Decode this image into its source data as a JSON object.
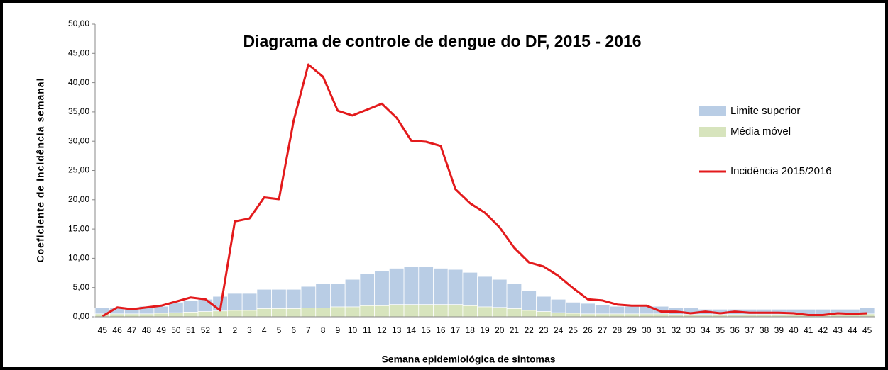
{
  "chart_data": {
    "type": "bar",
    "title": "Diagrama de controle de dengue do DF, 2015 - 2016",
    "x_label": "Semana epidemiológica  de sintomas",
    "y_label": "Coeficiente de incidência semanal",
    "categories": [
      "45",
      "46",
      "47",
      "48",
      "49",
      "50",
      "51",
      "52",
      "1",
      "2",
      "3",
      "4",
      "5",
      "6",
      "7",
      "8",
      "9",
      "10",
      "11",
      "12",
      "13",
      "14",
      "15",
      "16",
      "17",
      "18",
      "19",
      "20",
      "21",
      "22",
      "23",
      "24",
      "25",
      "26",
      "27",
      "28",
      "29",
      "30",
      "31",
      "32",
      "33",
      "34",
      "35",
      "36",
      "37",
      "38",
      "39",
      "40",
      "41",
      "42",
      "43",
      "44",
      "45"
    ],
    "series": [
      {
        "name": "Limite superior",
        "type": "bar",
        "color": "#b9cde5",
        "values": [
          1.5,
          1.5,
          1.5,
          1.8,
          1.8,
          2.5,
          2.8,
          3.0,
          3.5,
          4.0,
          4.0,
          4.7,
          4.7,
          4.7,
          5.2,
          5.7,
          5.7,
          6.4,
          7.4,
          7.9,
          8.3,
          8.6,
          8.6,
          8.3,
          8.1,
          7.6,
          6.9,
          6.4,
          5.7,
          4.5,
          3.5,
          3.0,
          2.5,
          2.3,
          2.0,
          1.8,
          1.8,
          1.8,
          1.8,
          1.6,
          1.5,
          1.3,
          1.3,
          1.3,
          1.3,
          1.3,
          1.3,
          1.3,
          1.3,
          1.3,
          1.3,
          1.3,
          1.6
        ]
      },
      {
        "name": "Média móvel",
        "type": "bar",
        "color": "#d7e4bd",
        "values": [
          0.5,
          0.5,
          0.5,
          0.5,
          0.6,
          0.7,
          0.8,
          0.9,
          1.0,
          1.1,
          1.1,
          1.4,
          1.4,
          1.4,
          1.5,
          1.5,
          1.7,
          1.7,
          1.9,
          1.9,
          2.1,
          2.1,
          2.1,
          2.1,
          2.1,
          1.9,
          1.7,
          1.6,
          1.4,
          1.1,
          0.9,
          0.7,
          0.6,
          0.5,
          0.5,
          0.5,
          0.5,
          0.5,
          0.5,
          0.4,
          0.4,
          0.4,
          0.4,
          0.4,
          0.4,
          0.4,
          0.4,
          0.4,
          0.4,
          0.4,
          0.4,
          0.4,
          0.5
        ]
      },
      {
        "name": "Incidência 2015/2016",
        "type": "line",
        "color": "#e31a1c",
        "values": [
          0.1,
          1.6,
          1.3,
          1.6,
          1.9,
          2.6,
          3.3,
          3.0,
          1.1,
          16.3,
          16.8,
          20.4,
          20.1,
          33.5,
          43.1,
          41.0,
          35.2,
          34.4,
          35.4,
          36.4,
          34.0,
          30.1,
          29.9,
          29.2,
          21.8,
          19.4,
          17.8,
          15.3,
          11.8,
          9.3,
          8.6,
          7.0,
          4.9,
          3.0,
          2.8,
          2.1,
          1.9,
          1.9,
          0.9,
          0.9,
          0.6,
          0.9,
          0.6,
          0.9,
          0.7,
          0.7,
          0.7,
          0.6,
          0.3,
          0.3,
          0.6,
          0.5,
          0.6
        ]
      }
    ],
    "ylim": [
      0,
      50
    ],
    "yticks": [
      {
        "value": 0,
        "label": "0,00"
      },
      {
        "value": 5,
        "label": "5,00"
      },
      {
        "value": 10,
        "label": "10,00"
      },
      {
        "value": 15,
        "label": "15,00"
      },
      {
        "value": 20,
        "label": "20,00"
      },
      {
        "value": 25,
        "label": "25,00"
      },
      {
        "value": 30,
        "label": "30,00"
      },
      {
        "value": 35,
        "label": "35,00"
      },
      {
        "value": 40,
        "label": "40,00"
      },
      {
        "value": 45,
        "label": "45,00"
      },
      {
        "value": 50,
        "label": "50,00"
      }
    ],
    "grid": false,
    "legend": "right"
  }
}
